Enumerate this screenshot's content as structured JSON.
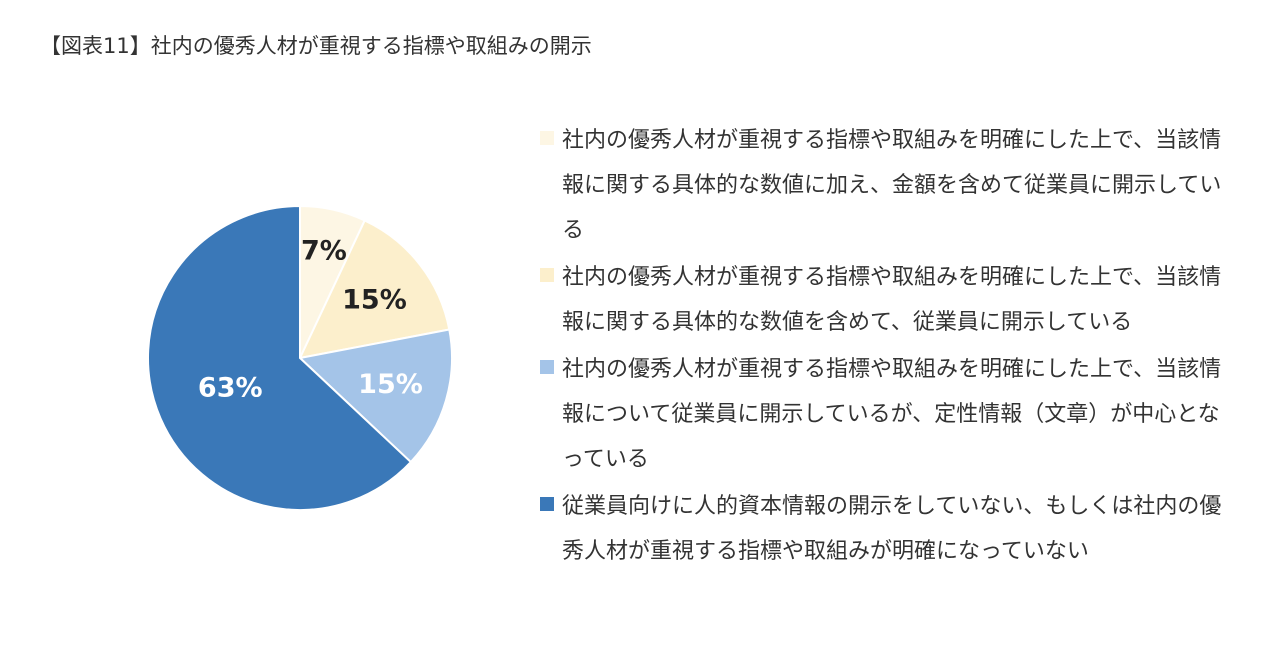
{
  "title": "【図表11】社内の優秀人材が重視する指標や取組みの開示",
  "chart_data": {
    "type": "pie",
    "title": "【図表11】社内の優秀人材が重視する指標や取組みの開示",
    "legend_position": "right",
    "slices": [
      {
        "label": "社内の優秀人材が重視する指標や取組みを明確にした上で、当該情報に関する具体的な数値に加え、金額を含めて従業員に開示している",
        "value": 7,
        "value_label": "7%",
        "color": "#fdf6e4",
        "label_color": "#222222"
      },
      {
        "label": "社内の優秀人材が重視する指標や取組みを明確にした上で、当該情報に関する具体的な数値を含めて、従業員に開示している",
        "value": 15,
        "value_label": "15%",
        "color": "#fcefcc",
        "label_color": "#222222"
      },
      {
        "label": "社内の優秀人材が重視する指標や取組みを明確にした上で、当該情報について従業員に開示しているが、定性情報（文章）が中心となっている",
        "value": 15,
        "value_label": "15%",
        "color": "#a4c4e8",
        "label_color": "#ffffff"
      },
      {
        "label": "従業員向けに人的資本情報の開示をしていない、もしくは社内の優秀人材が重視する指標や取組みが明確になっていない",
        "value": 63,
        "value_label": "63%",
        "color": "#3a78b8",
        "label_color": "#ffffff"
      }
    ]
  }
}
